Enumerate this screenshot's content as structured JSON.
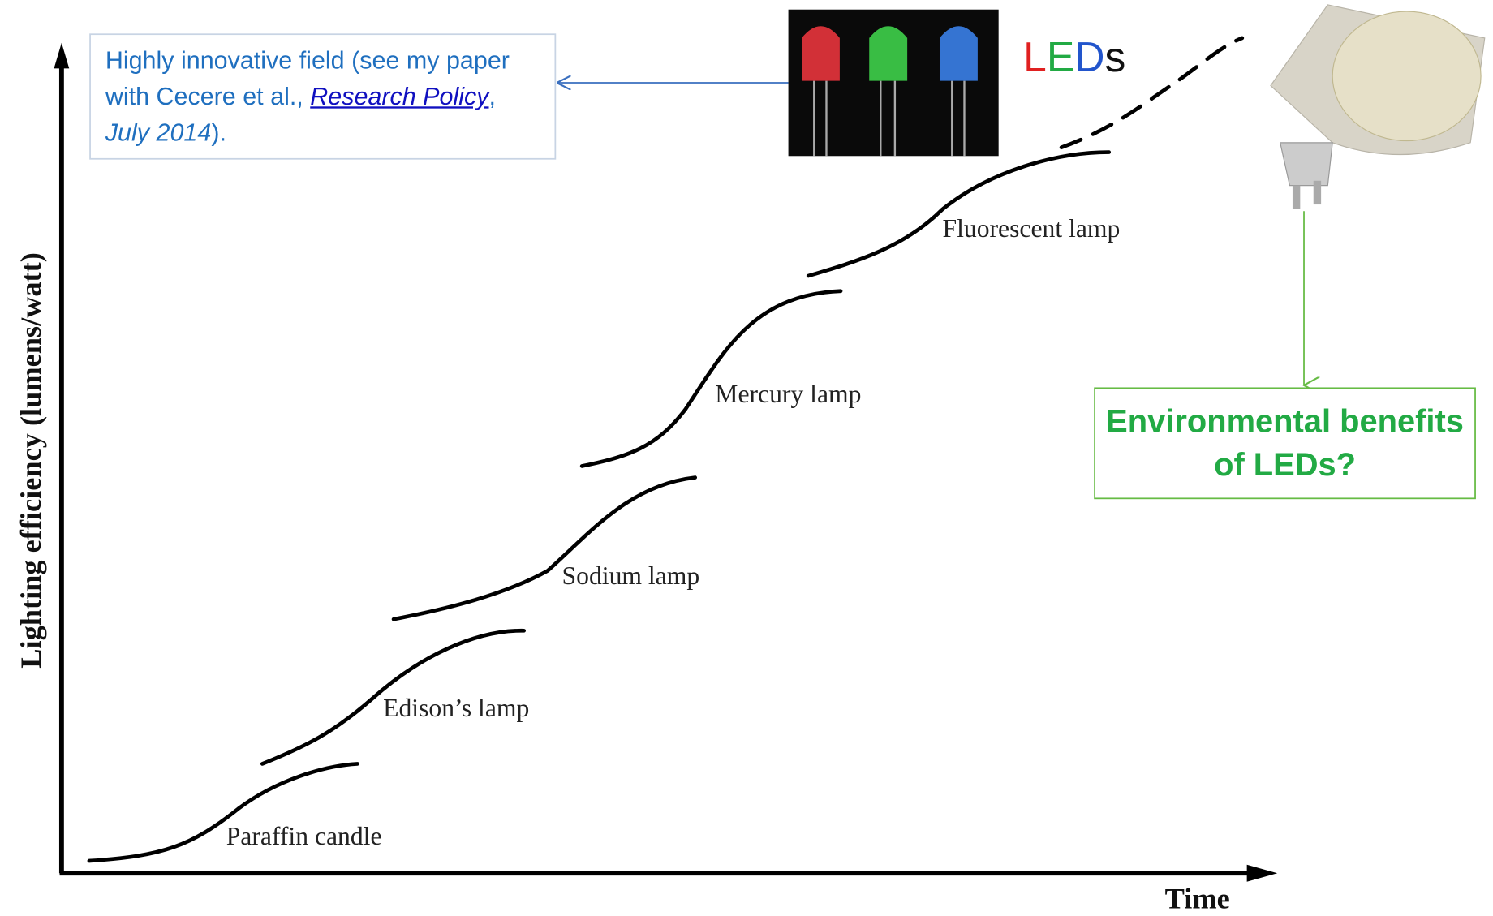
{
  "y_axis_label": "Lighting efficiency (lumens/watt)",
  "x_axis_label": "Time",
  "curve_labels": [
    "Paraffin candle",
    "Edison’s lamp",
    "Sodium lamp",
    "Mercury lamp",
    "Fluorescent lamp"
  ],
  "callout": {
    "parts": [
      "Highly innovative field (see my paper with Cecere et al., ",
      "Research Policy",
      ", ",
      "July 2014",
      ")."
    ]
  },
  "leds_label": [
    "L",
    "E",
    "D",
    "s"
  ],
  "question": "Environmental benefits of LEDs?"
}
